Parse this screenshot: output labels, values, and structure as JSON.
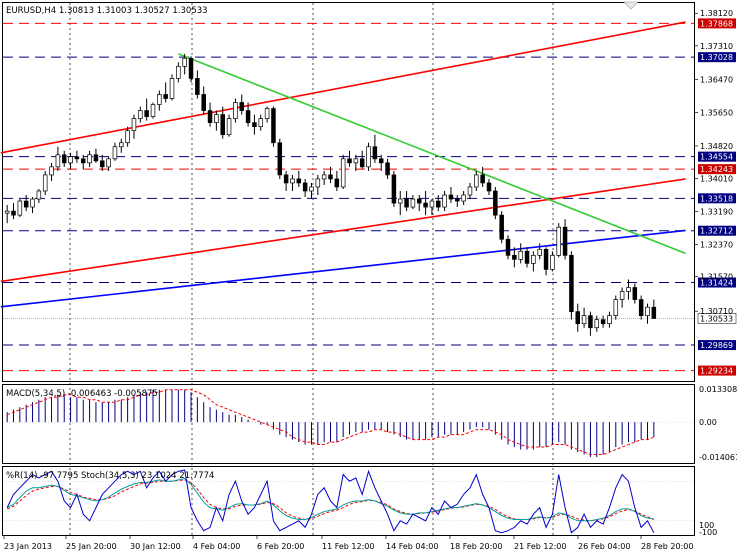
{
  "window": {
    "symbol_header": "EURUSD,H4  1.30813 1.31003 1.30527 1.30533",
    "close_icon": "close-icon"
  },
  "colors": {
    "background": "#ffffff",
    "frame": "#000000",
    "bull_candle": "#ffffff",
    "bear_candle": "#000000",
    "channel_line": "#ff0000",
    "trend_line": "#33cc33",
    "blue_trend_line": "#0000ff",
    "level_red": "#ff0000",
    "level_blue": "#000080",
    "macd_bars": "#000080",
    "macd_signal": "#ff0000",
    "stoch_k": "#00a0a0",
    "stoch_d": "#ff0000",
    "williams": "#0000cc"
  },
  "price_axis": {
    "labels": [
      "1.38120",
      "1.37310",
      "1.36470",
      "1.35650",
      "1.34820",
      "1.34010",
      "1.33190",
      "1.32370",
      "1.31570",
      "1.30710"
    ]
  },
  "levels": [
    {
      "label": "1.37868",
      "value": 1.37868,
      "color": "red"
    },
    {
      "label": "1.37028",
      "value": 1.37028,
      "color": "blue"
    },
    {
      "label": "1.34554",
      "value": 1.34554,
      "color": "blue"
    },
    {
      "label": "1.34243",
      "value": 1.34243,
      "color": "red"
    },
    {
      "label": "1.33518",
      "value": 1.33518,
      "color": "blue"
    },
    {
      "label": "1.32712",
      "value": 1.32712,
      "color": "blue"
    },
    {
      "label": "1.31424",
      "value": 1.31424,
      "color": "blue"
    },
    {
      "label": "1.29869",
      "value": 1.29869,
      "color": "blue"
    },
    {
      "label": "1.29234",
      "value": 1.29234,
      "color": "red"
    }
  ],
  "current_price": {
    "label": "1.30533",
    "value": 1.30533
  },
  "macd": {
    "title": "MACD(5,34,5) -0.006463 -0.005875",
    "axis_labels": [
      "0.013308",
      "0.00",
      "-0.014061"
    ]
  },
  "oscillator": {
    "title": "%R(14) -97.7795 Stoch(34,5,3) 23.1024 21.7774",
    "axis_labels": [
      "100",
      "-100"
    ]
  },
  "time_axis": {
    "labels": [
      "23 Jan 2013",
      "25 Jan 20:00",
      "30 Jan 12:00",
      "4 Feb 04:00",
      "6 Feb 20:00",
      "11 Feb 12:00",
      "14 Feb 04:00",
      "18 Feb 20:00",
      "21 Feb 12:00",
      "26 Feb 04:00",
      "28 Feb 20:00"
    ]
  },
  "chart_data": {
    "type": "candlestick",
    "symbol": "EURUSD",
    "timeframe": "H4",
    "ohlc": [
      [
        1.3315,
        1.3335,
        1.329,
        1.332
      ],
      [
        1.332,
        1.334,
        1.33,
        1.331
      ],
      [
        1.331,
        1.335,
        1.3305,
        1.3345
      ],
      [
        1.3345,
        1.336,
        1.332,
        1.333
      ],
      [
        1.333,
        1.3355,
        1.3315,
        1.335
      ],
      [
        1.335,
        1.3375,
        1.334,
        1.337
      ],
      [
        1.337,
        1.342,
        1.336,
        1.341
      ],
      [
        1.341,
        1.344,
        1.3395,
        1.343
      ],
      [
        1.343,
        1.348,
        1.342,
        1.346
      ],
      [
        1.346,
        1.347,
        1.343,
        1.344
      ],
      [
        1.344,
        1.3465,
        1.3425,
        1.3455
      ],
      [
        1.3455,
        1.347,
        1.344,
        1.345
      ],
      [
        1.345,
        1.346,
        1.3425,
        1.344
      ],
      [
        1.344,
        1.347,
        1.343,
        1.346
      ],
      [
        1.346,
        1.3475,
        1.344,
        1.3445
      ],
      [
        1.3445,
        1.346,
        1.342,
        1.343
      ],
      [
        1.343,
        1.3455,
        1.342,
        1.345
      ],
      [
        1.345,
        1.349,
        1.3445,
        1.348
      ],
      [
        1.348,
        1.35,
        1.3465,
        1.349
      ],
      [
        1.349,
        1.353,
        1.348,
        1.352
      ],
      [
        1.352,
        1.356,
        1.35,
        1.355
      ],
      [
        1.355,
        1.358,
        1.354,
        1.357
      ],
      [
        1.357,
        1.36,
        1.3545,
        1.3555
      ],
      [
        1.3555,
        1.359,
        1.355,
        1.3585
      ],
      [
        1.3585,
        1.362,
        1.357,
        1.361
      ],
      [
        1.361,
        1.364,
        1.359,
        1.36
      ],
      [
        1.36,
        1.366,
        1.3595,
        1.365
      ],
      [
        1.365,
        1.369,
        1.364,
        1.368
      ],
      [
        1.368,
        1.3711,
        1.366,
        1.37
      ],
      [
        1.37,
        1.3705,
        1.364,
        1.365
      ],
      [
        1.365,
        1.367,
        1.36,
        1.361
      ],
      [
        1.361,
        1.363,
        1.356,
        1.357
      ],
      [
        1.357,
        1.359,
        1.353,
        1.354
      ],
      [
        1.354,
        1.357,
        1.352,
        1.356
      ],
      [
        1.356,
        1.358,
        1.35,
        1.351
      ],
      [
        1.351,
        1.356,
        1.3505,
        1.355
      ],
      [
        1.355,
        1.36,
        1.354,
        1.359
      ],
      [
        1.359,
        1.361,
        1.356,
        1.357
      ],
      [
        1.357,
        1.359,
        1.353,
        1.354
      ],
      [
        1.354,
        1.356,
        1.351,
        1.353
      ],
      [
        1.353,
        1.356,
        1.352,
        1.355
      ],
      [
        1.355,
        1.358,
        1.354,
        1.3575
      ],
      [
        1.3575,
        1.358,
        1.348,
        1.349
      ],
      [
        1.349,
        1.35,
        1.34,
        1.341
      ],
      [
        1.341,
        1.342,
        1.337,
        1.339
      ],
      [
        1.339,
        1.341,
        1.337,
        1.34
      ],
      [
        1.34,
        1.342,
        1.338,
        1.339
      ],
      [
        1.339,
        1.34,
        1.3355,
        1.337
      ],
      [
        1.337,
        1.339,
        1.335,
        1.338
      ],
      [
        1.338,
        1.341,
        1.336,
        1.34
      ],
      [
        1.34,
        1.342,
        1.3385,
        1.341
      ],
      [
        1.341,
        1.343,
        1.339,
        1.34
      ],
      [
        1.34,
        1.342,
        1.337,
        1.338
      ],
      [
        1.338,
        1.346,
        1.3375,
        1.345
      ],
      [
        1.345,
        1.347,
        1.343,
        1.344
      ],
      [
        1.344,
        1.346,
        1.342,
        1.345
      ],
      [
        1.345,
        1.347,
        1.3425,
        1.343
      ],
      [
        1.343,
        1.349,
        1.342,
        1.348
      ],
      [
        1.348,
        1.351,
        1.344,
        1.345
      ],
      [
        1.345,
        1.346,
        1.342,
        1.344
      ],
      [
        1.344,
        1.345,
        1.34,
        1.341
      ],
      [
        1.341,
        1.342,
        1.333,
        1.334
      ],
      [
        1.334,
        1.337,
        1.331,
        1.335
      ],
      [
        1.335,
        1.337,
        1.332,
        1.333
      ],
      [
        1.333,
        1.336,
        1.3325,
        1.335
      ],
      [
        1.335,
        1.336,
        1.332,
        1.334
      ],
      [
        1.334,
        1.337,
        1.331,
        1.333
      ],
      [
        1.333,
        1.335,
        1.331,
        1.3345
      ],
      [
        1.3345,
        1.336,
        1.332,
        1.333
      ],
      [
        1.333,
        1.337,
        1.332,
        1.336
      ],
      [
        1.336,
        1.338,
        1.334,
        1.335
      ],
      [
        1.335,
        1.336,
        1.333,
        1.3345
      ],
      [
        1.3345,
        1.337,
        1.3335,
        1.336
      ],
      [
        1.336,
        1.339,
        1.335,
        1.338
      ],
      [
        1.338,
        1.342,
        1.337,
        1.341
      ],
      [
        1.341,
        1.343,
        1.338,
        1.339
      ],
      [
        1.339,
        1.34,
        1.336,
        1.337
      ],
      [
        1.337,
        1.338,
        1.33,
        1.331
      ],
      [
        1.331,
        1.332,
        1.324,
        1.325
      ],
      [
        1.325,
        1.326,
        1.32,
        1.321
      ],
      [
        1.321,
        1.323,
        1.318,
        1.32
      ],
      [
        1.32,
        1.324,
        1.319,
        1.322
      ],
      [
        1.322,
        1.323,
        1.318,
        1.319
      ],
      [
        1.319,
        1.322,
        1.317,
        1.321
      ],
      [
        1.321,
        1.324,
        1.32,
        1.3225
      ],
      [
        1.3225,
        1.323,
        1.316,
        1.3175
      ],
      [
        1.3175,
        1.322,
        1.317,
        1.321
      ],
      [
        1.321,
        1.329,
        1.3205,
        1.328
      ],
      [
        1.328,
        1.33,
        1.32,
        1.321
      ],
      [
        1.321,
        1.322,
        1.305,
        1.307
      ],
      [
        1.307,
        1.309,
        1.302,
        1.304
      ],
      [
        1.304,
        1.308,
        1.303,
        1.306
      ],
      [
        1.306,
        1.307,
        1.301,
        1.303
      ],
      [
        1.303,
        1.306,
        1.302,
        1.305
      ],
      [
        1.305,
        1.306,
        1.303,
        1.304
      ],
      [
        1.304,
        1.307,
        1.303,
        1.306
      ],
      [
        1.306,
        1.311,
        1.305,
        1.31
      ],
      [
        1.31,
        1.313,
        1.308,
        1.312
      ],
      [
        1.312,
        1.315,
        1.31,
        1.313
      ],
      [
        1.313,
        1.314,
        1.309,
        1.31
      ],
      [
        1.31,
        1.311,
        1.305,
        1.306
      ],
      [
        1.306,
        1.309,
        1.304,
        1.3081
      ],
      [
        1.3081,
        1.31,
        1.3053,
        1.3053
      ]
    ],
    "macd_hist": [
      0.004,
      0.005,
      0.006,
      0.007,
      0.008,
      0.009,
      0.01,
      0.01,
      0.011,
      0.011,
      0.01,
      0.01,
      0.009,
      0.009,
      0.008,
      0.008,
      0.008,
      0.009,
      0.009,
      0.01,
      0.011,
      0.012,
      0.012,
      0.013,
      0.013,
      0.013,
      0.013,
      0.013,
      0.013,
      0.012,
      0.01,
      0.008,
      0.006,
      0.005,
      0.004,
      0.003,
      0.003,
      0.002,
      0.001,
      0.0,
      -0.001,
      -0.001,
      -0.003,
      -0.005,
      -0.006,
      -0.007,
      -0.008,
      -0.009,
      -0.009,
      -0.009,
      -0.008,
      -0.008,
      -0.008,
      -0.006,
      -0.005,
      -0.004,
      -0.004,
      -0.003,
      -0.003,
      -0.003,
      -0.004,
      -0.005,
      -0.006,
      -0.007,
      -0.007,
      -0.007,
      -0.007,
      -0.006,
      -0.006,
      -0.005,
      -0.005,
      -0.005,
      -0.004,
      -0.003,
      -0.002,
      -0.002,
      -0.003,
      -0.005,
      -0.007,
      -0.009,
      -0.01,
      -0.011,
      -0.011,
      -0.011,
      -0.01,
      -0.01,
      -0.009,
      -0.008,
      -0.009,
      -0.011,
      -0.012,
      -0.013,
      -0.014,
      -0.014,
      -0.013,
      -0.012,
      -0.01,
      -0.009,
      -0.008,
      -0.008,
      -0.007,
      -0.007,
      -0.006
    ],
    "macd_signal": [
      0.003,
      0.004,
      0.005,
      0.006,
      0.007,
      0.008,
      0.009,
      0.01,
      0.01,
      0.011,
      0.011,
      0.01,
      0.01,
      0.009,
      0.009,
      0.008,
      0.008,
      0.008,
      0.009,
      0.009,
      0.01,
      0.011,
      0.011,
      0.012,
      0.012,
      0.013,
      0.013,
      0.013,
      0.013,
      0.013,
      0.012,
      0.011,
      0.009,
      0.007,
      0.006,
      0.005,
      0.004,
      0.003,
      0.002,
      0.001,
      0.0,
      -0.001,
      -0.002,
      -0.003,
      -0.004,
      -0.006,
      -0.007,
      -0.008,
      -0.008,
      -0.009,
      -0.009,
      -0.008,
      -0.008,
      -0.007,
      -0.006,
      -0.005,
      -0.004,
      -0.004,
      -0.003,
      -0.003,
      -0.004,
      -0.004,
      -0.005,
      -0.006,
      -0.007,
      -0.007,
      -0.007,
      -0.007,
      -0.006,
      -0.006,
      -0.005,
      -0.005,
      -0.005,
      -0.004,
      -0.003,
      -0.003,
      -0.003,
      -0.004,
      -0.005,
      -0.007,
      -0.008,
      -0.009,
      -0.01,
      -0.01,
      -0.01,
      -0.01,
      -0.009,
      -0.009,
      -0.009,
      -0.01,
      -0.011,
      -0.012,
      -0.013,
      -0.013,
      -0.013,
      -0.012,
      -0.011,
      -0.01,
      -0.009,
      -0.008,
      -0.007,
      -0.007,
      -0.006
    ],
    "williams_r": [
      -60,
      -40,
      -30,
      -20,
      -10,
      -15,
      -10,
      -5,
      -20,
      -50,
      -60,
      -40,
      -70,
      -80,
      -60,
      -40,
      -30,
      -20,
      -10,
      -5,
      -10,
      -5,
      -30,
      -15,
      -5,
      -20,
      -10,
      -5,
      -3,
      -60,
      -80,
      -95,
      -90,
      -60,
      -80,
      -40,
      -20,
      -50,
      -70,
      -60,
      -40,
      -20,
      -80,
      -95,
      -90,
      -85,
      -80,
      -90,
      -70,
      -40,
      -30,
      -50,
      -60,
      -10,
      -20,
      -15,
      -40,
      -5,
      -30,
      -50,
      -70,
      -95,
      -80,
      -85,
      -70,
      -75,
      -80,
      -60,
      -70,
      -50,
      -60,
      -55,
      -40,
      -30,
      -10,
      -40,
      -60,
      -95,
      -98,
      -95,
      -90,
      -80,
      -85,
      -70,
      -60,
      -90,
      -70,
      -10,
      -60,
      -98,
      -90,
      -70,
      -90,
      -80,
      -85,
      -60,
      -30,
      -10,
      -20,
      -60,
      -90,
      -80,
      -98
    ],
    "stoch_k": [
      40,
      45,
      55,
      65,
      70,
      70,
      72,
      74,
      72,
      66,
      60,
      58,
      55,
      52,
      50,
      52,
      56,
      62,
      68,
      72,
      76,
      78,
      78,
      80,
      82,
      80,
      80,
      82,
      84,
      75,
      62,
      48,
      40,
      38,
      36,
      40,
      45,
      46,
      44,
      44,
      46,
      50,
      44,
      35,
      28,
      24,
      22,
      22,
      25,
      30,
      34,
      36,
      38,
      44,
      48,
      50,
      50,
      52,
      50,
      46,
      42,
      36,
      32,
      30,
      30,
      32,
      32,
      34,
      36,
      38,
      40,
      40,
      42,
      44,
      46,
      44,
      40,
      34,
      28,
      24,
      22,
      22,
      22,
      24,
      26,
      24,
      26,
      32,
      30,
      24,
      20,
      20,
      20,
      22,
      24,
      28,
      34,
      38,
      38,
      34,
      28,
      24,
      23
    ],
    "stoch_d": [
      38,
      42,
      50,
      58,
      65,
      68,
      70,
      72,
      72,
      68,
      63,
      60,
      56,
      54,
      52,
      52,
      54,
      58,
      64,
      68,
      72,
      76,
      77,
      78,
      80,
      80,
      80,
      81,
      82,
      78,
      68,
      55,
      45,
      40,
      38,
      38,
      42,
      44,
      44,
      44,
      45,
      48,
      46,
      40,
      32,
      27,
      24,
      22,
      23,
      27,
      31,
      34,
      36,
      40,
      45,
      48,
      49,
      51,
      50,
      48,
      44,
      38,
      34,
      31,
      30,
      31,
      32,
      33,
      35,
      37,
      39,
      40,
      41,
      43,
      45,
      44,
      42,
      37,
      31,
      26,
      23,
      22,
      22,
      23,
      25,
      25,
      25,
      29,
      30,
      27,
      23,
      21,
      20,
      21,
      23,
      26,
      31,
      35,
      37,
      35,
      30,
      26,
      21.8
    ],
    "price_range": [
      1.29,
      1.3835
    ],
    "macd_range": [
      -0.016,
      0.0145
    ],
    "osc_range": [
      -100,
      0
    ]
  }
}
